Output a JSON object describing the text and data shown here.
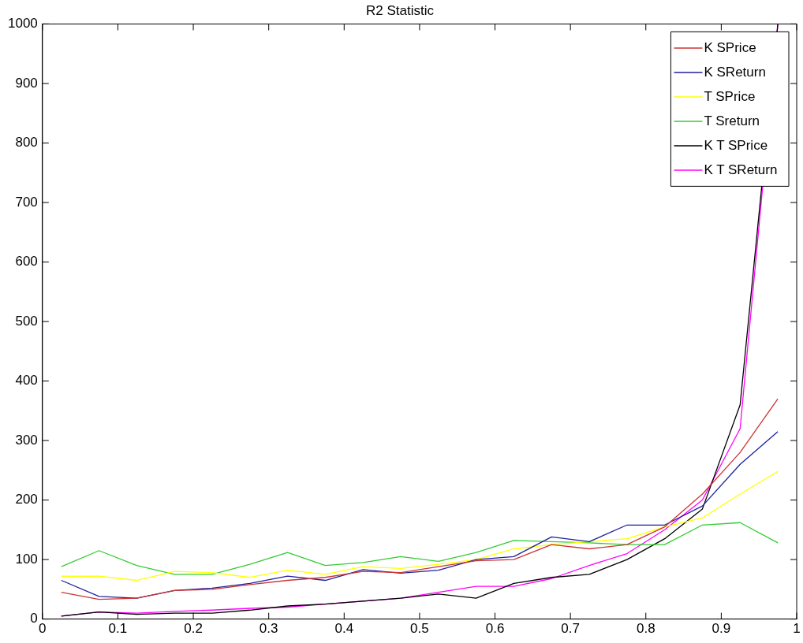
{
  "chart_data": {
    "type": "line",
    "title": "R2 Statistic",
    "x": [
      0.025,
      0.075,
      0.125,
      0.175,
      0.225,
      0.275,
      0.325,
      0.375,
      0.425,
      0.475,
      0.525,
      0.575,
      0.625,
      0.675,
      0.725,
      0.775,
      0.825,
      0.875,
      0.925,
      0.975
    ],
    "series": [
      {
        "name": "K SPrice",
        "color": "#cc3333",
        "values": [
          45,
          33,
          35,
          48,
          50,
          58,
          65,
          70,
          80,
          78,
          88,
          98,
          100,
          125,
          118,
          125,
          155,
          210,
          280,
          370
        ]
      },
      {
        "name": "K SReturn",
        "color": "#1f1fa0",
        "values": [
          65,
          38,
          35,
          48,
          52,
          60,
          72,
          65,
          83,
          77,
          82,
          100,
          105,
          138,
          130,
          158,
          158,
          190,
          260,
          315
        ]
      },
      {
        "name": "T SPrice",
        "color": "#ffff00",
        "values": [
          72,
          72,
          65,
          80,
          78,
          70,
          82,
          75,
          88,
          85,
          92,
          100,
          118,
          125,
          130,
          135,
          155,
          170,
          210,
          248
        ]
      },
      {
        "name": "T Sreturn",
        "color": "#33cc33",
        "values": [
          88,
          115,
          90,
          75,
          75,
          92,
          112,
          90,
          95,
          105,
          97,
          112,
          132,
          130,
          128,
          125,
          125,
          158,
          162,
          128
        ]
      },
      {
        "name": "K T SPrice",
        "color": "#000000",
        "values": [
          5,
          12,
          8,
          10,
          10,
          15,
          22,
          25,
          30,
          35,
          42,
          35,
          60,
          70,
          75,
          100,
          135,
          185,
          360,
          1000
        ]
      },
      {
        "name": "K T SReturn",
        "color": "#ff00ff",
        "values": [
          5,
          12,
          10,
          13,
          15,
          18,
          20,
          25,
          30,
          35,
          45,
          55,
          55,
          68,
          90,
          110,
          150,
          200,
          320,
          1000
        ]
      }
    ],
    "xlim": [
      0,
      1
    ],
    "xticks": [
      0,
      0.1,
      0.2,
      0.3,
      0.4,
      0.5,
      0.6,
      0.7,
      0.8,
      0.9,
      1
    ],
    "ylim": [
      0,
      1000
    ],
    "yticks": [
      0,
      100,
      200,
      300,
      400,
      500,
      600,
      700,
      800,
      900,
      1000
    ],
    "legend": "top right",
    "marker": "none",
    "line_style": "solid"
  }
}
